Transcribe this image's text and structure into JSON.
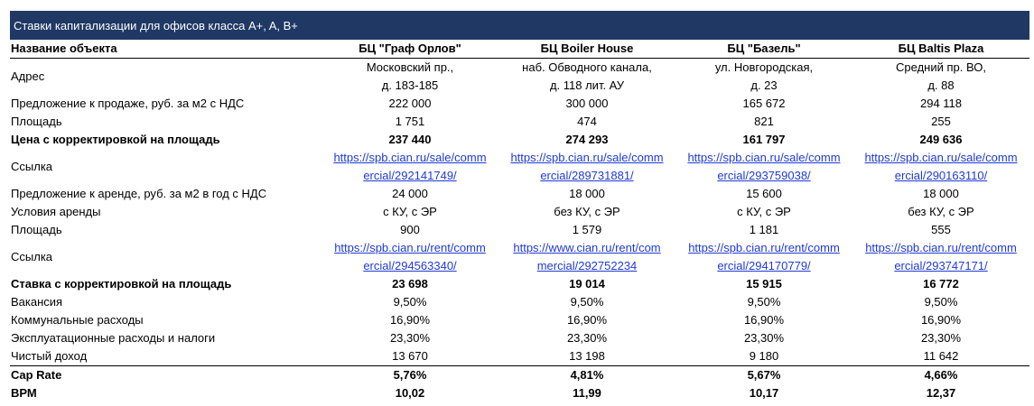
{
  "colors": {
    "banner_bg": "#1f3864",
    "link": "#1f3ad6"
  },
  "banner": {
    "title": "Ставки капитализации для офисов класса A+, A, B+"
  },
  "header": {
    "label": "Название объекта",
    "objects": [
      "БЦ \"Граф Орлов\"",
      "БЦ Boiler House",
      "БЦ \"Базель\"",
      "БЦ Baltis Plaza"
    ]
  },
  "address": {
    "label": "Адрес",
    "values": [
      [
        "Московский пр.,",
        "д. 183-185"
      ],
      [
        "наб. Обводного канала,",
        "д. 118 лит. АУ"
      ],
      [
        "ул. Новгородская,",
        "д. 23"
      ],
      [
        "Средний пр. ВО,",
        "д. 88"
      ]
    ]
  },
  "sale_offer": {
    "label": "Предложение к продаже, руб. за м2 с НДС",
    "values": [
      "222 000",
      "300 000",
      "165 672",
      "294 118"
    ]
  },
  "sale_area": {
    "label": "Площадь",
    "values": [
      "1 751",
      "474",
      "821",
      "255"
    ]
  },
  "sale_adjusted": {
    "label": "Цена с корректировкой на площадь",
    "values": [
      "237 440",
      "274 293",
      "161 797",
      "249 636"
    ]
  },
  "sale_link": {
    "label": "Ссылка",
    "values": [
      [
        "https://spb.cian.ru/sale/comm",
        "ercial/292141749/"
      ],
      [
        "https://spb.cian.ru/sale/comm",
        "ercial/289731881/"
      ],
      [
        "https://spb.cian.ru/sale/comm",
        "ercial/293759038/"
      ],
      [
        "https://spb.cian.ru/sale/comm",
        "ercial/290163110/"
      ]
    ]
  },
  "rent_offer": {
    "label": "Предложение к аренде, руб. за м2 в год с НДС",
    "values": [
      "24 000",
      "18 000",
      "15 600",
      "18 000"
    ]
  },
  "rent_terms": {
    "label": "Условия аренды",
    "values": [
      "с КУ, с ЭР",
      "без КУ, с ЭР",
      "с КУ, с ЭР",
      "без КУ, с ЭР"
    ]
  },
  "rent_area": {
    "label": "Площадь",
    "values": [
      "900",
      "1 579",
      "1 181",
      "555"
    ]
  },
  "rent_link": {
    "label": "Ссылка",
    "values": [
      [
        "https://spb.cian.ru/rent/comm",
        "ercial/294563340/"
      ],
      [
        "https://www.cian.ru/rent/com",
        "mercial/292752234"
      ],
      [
        "https://spb.cian.ru/rent/comm",
        "ercial/294170779/"
      ],
      [
        "https://spb.cian.ru/rent/comm",
        "ercial/293747171/"
      ]
    ]
  },
  "rent_adjusted": {
    "label": "Ставка с корректировкой на площадь",
    "values": [
      "23 698",
      "19 014",
      "15 915",
      "16 772"
    ]
  },
  "vacancy": {
    "label": "Вакансия",
    "values": [
      "9,50%",
      "9,50%",
      "9,50%",
      "9,50%"
    ]
  },
  "utilities": {
    "label": "Коммунальные расходы",
    "values": [
      "16,90%",
      "16,90%",
      "16,90%",
      "16,90%"
    ]
  },
  "operating": {
    "label": "Эксплуатационные расходы и налоги",
    "values": [
      "23,30%",
      "23,30%",
      "23,30%",
      "23,30%"
    ]
  },
  "net_income": {
    "label": "Чистый доход",
    "values": [
      "13 670",
      "13 198",
      "9 180",
      "11 642"
    ]
  },
  "cap_rate": {
    "label": "Cap Rate",
    "values": [
      "5,76%",
      "4,81%",
      "5,67%",
      "4,66%"
    ]
  },
  "bpm": {
    "label": "ВРМ",
    "values": [
      "10,02",
      "11,99",
      "10,17",
      "12,37"
    ]
  }
}
